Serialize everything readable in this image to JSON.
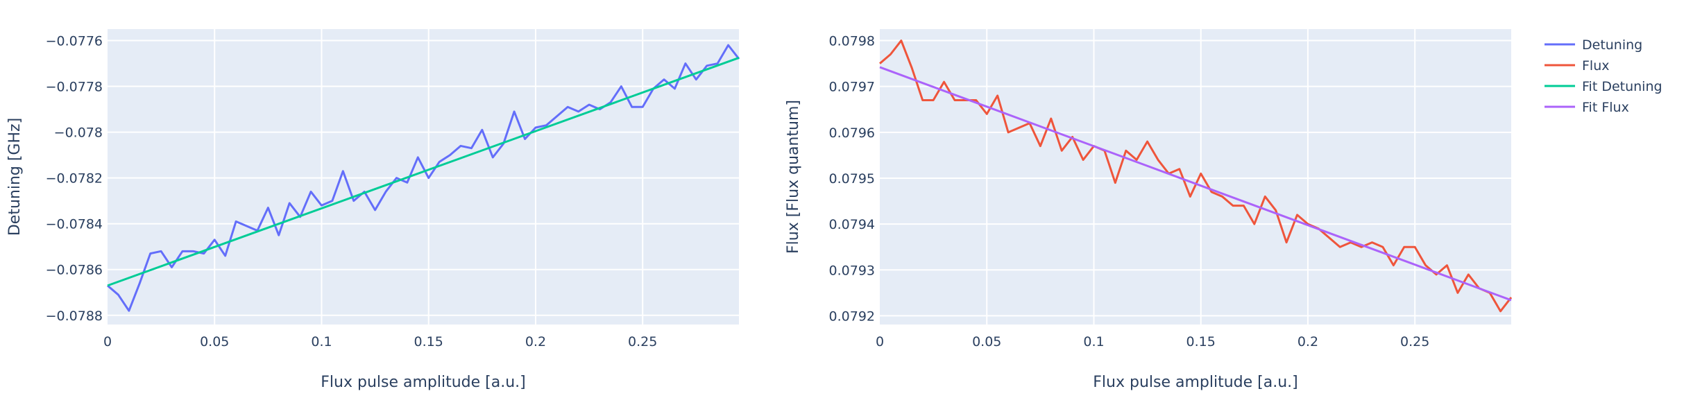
{
  "chart_data": [
    {
      "type": "line",
      "xlabel": "Flux pulse amplitude [a.u.]",
      "ylabel": "Detuning [GHz]",
      "xlim": [
        0,
        0.295
      ],
      "ylim": [
        -0.07884,
        -0.07755
      ],
      "xticks": [
        0,
        0.05,
        0.1,
        0.15,
        0.2,
        0.25
      ],
      "xtick_labels": [
        "0",
        "0.05",
        "0.1",
        "0.15",
        "0.2",
        "0.25"
      ],
      "yticks": [
        -0.0788,
        -0.0786,
        -0.0784,
        -0.0782,
        -0.078,
        -0.0778,
        -0.0776
      ],
      "ytick_labels": [
        "−0.0788",
        "−0.0786",
        "−0.0784",
        "−0.0782",
        "−0.078",
        "−0.0778",
        "−0.0776"
      ],
      "grid": true,
      "series": [
        {
          "name": "Detuning",
          "color": "#636efa",
          "x": [
            0,
            0.005,
            0.01,
            0.015,
            0.02,
            0.025,
            0.03,
            0.035,
            0.04,
            0.045,
            0.05,
            0.055,
            0.06,
            0.065,
            0.07,
            0.075,
            0.08,
            0.085,
            0.09,
            0.095,
            0.1,
            0.105,
            0.11,
            0.115,
            0.12,
            0.125,
            0.13,
            0.135,
            0.14,
            0.145,
            0.15,
            0.155,
            0.16,
            0.165,
            0.17,
            0.175,
            0.18,
            0.185,
            0.19,
            0.195,
            0.2,
            0.205,
            0.21,
            0.215,
            0.22,
            0.225,
            0.23,
            0.235,
            0.24,
            0.245,
            0.25,
            0.255,
            0.26,
            0.265,
            0.27,
            0.275,
            0.28,
            0.285,
            0.29,
            0.295
          ],
          "y": [
            -0.07867,
            -0.07871,
            -0.07878,
            -0.07866,
            -0.07853,
            -0.07852,
            -0.07859,
            -0.07852,
            -0.07852,
            -0.07853,
            -0.07847,
            -0.07854,
            -0.07839,
            -0.07841,
            -0.07843,
            -0.07833,
            -0.07845,
            -0.07831,
            -0.07837,
            -0.07826,
            -0.07832,
            -0.0783,
            -0.07817,
            -0.0783,
            -0.07826,
            -0.07834,
            -0.07826,
            -0.0782,
            -0.07822,
            -0.07811,
            -0.0782,
            -0.07813,
            -0.0781,
            -0.07806,
            -0.07807,
            -0.07799,
            -0.07811,
            -0.07805,
            -0.07791,
            -0.07803,
            -0.07798,
            -0.07797,
            -0.07793,
            -0.07789,
            -0.07791,
            -0.07788,
            -0.0779,
            -0.07787,
            -0.0778,
            -0.07789,
            -0.07789,
            -0.07781,
            -0.07777,
            -0.07781,
            -0.0777,
            -0.07777,
            -0.07771,
            -0.0777,
            -0.07762,
            -0.07768
          ]
        },
        {
          "name": "Fit Detuning",
          "color": "#00cc96",
          "x": [
            0,
            0.295
          ],
          "y": [
            -0.07867,
            -0.077675
          ]
        }
      ]
    },
    {
      "type": "line",
      "xlabel": "Flux pulse amplitude [a.u.]",
      "ylabel": "Flux [Flux quantum]",
      "xlim": [
        0,
        0.295
      ],
      "ylim": [
        0.079181,
        0.079825
      ],
      "xticks": [
        0,
        0.05,
        0.1,
        0.15,
        0.2,
        0.25
      ],
      "xtick_labels": [
        "0",
        "0.05",
        "0.1",
        "0.15",
        "0.2",
        "0.25"
      ],
      "yticks": [
        0.0792,
        0.0793,
        0.0794,
        0.0795,
        0.0796,
        0.0797,
        0.0798
      ],
      "ytick_labels": [
        "0.0792",
        "0.0793",
        "0.0794",
        "0.0795",
        "0.0796",
        "0.0797",
        "0.0798"
      ],
      "grid": true,
      "series": [
        {
          "name": "Flux",
          "color": "#ef553b",
          "x": [
            0,
            0.005,
            0.01,
            0.015,
            0.02,
            0.025,
            0.03,
            0.035,
            0.04,
            0.045,
            0.05,
            0.055,
            0.06,
            0.065,
            0.07,
            0.075,
            0.08,
            0.085,
            0.09,
            0.095,
            0.1,
            0.105,
            0.11,
            0.115,
            0.12,
            0.125,
            0.13,
            0.135,
            0.14,
            0.145,
            0.15,
            0.155,
            0.16,
            0.165,
            0.17,
            0.175,
            0.18,
            0.185,
            0.19,
            0.195,
            0.2,
            0.205,
            0.21,
            0.215,
            0.22,
            0.225,
            0.23,
            0.235,
            0.24,
            0.245,
            0.25,
            0.255,
            0.26,
            0.265,
            0.27,
            0.275,
            0.28,
            0.285,
            0.29,
            0.295
          ],
          "y": [
            0.07975,
            0.07977,
            0.0798,
            0.07974,
            0.07967,
            0.07967,
            0.07971,
            0.07967,
            0.07967,
            0.07967,
            0.07964,
            0.07968,
            0.0796,
            0.07961,
            0.07962,
            0.07957,
            0.07963,
            0.07956,
            0.07959,
            0.07954,
            0.07957,
            0.07956,
            0.07949,
            0.07956,
            0.07954,
            0.07958,
            0.07954,
            0.07951,
            0.07952,
            0.07946,
            0.07951,
            0.07947,
            0.07946,
            0.07944,
            0.07944,
            0.0794,
            0.07946,
            0.07943,
            0.07936,
            0.07942,
            0.0794,
            0.07939,
            0.07937,
            0.07935,
            0.07936,
            0.07935,
            0.07936,
            0.07935,
            0.07931,
            0.07935,
            0.07935,
            0.07931,
            0.07929,
            0.07931,
            0.07925,
            0.07929,
            0.07926,
            0.07925,
            0.07921,
            0.07924
          ]
        },
        {
          "name": "Fit Flux",
          "color": "#ab63fa",
          "x": [
            0,
            0.295
          ],
          "y": [
            0.079742,
            0.079234
          ]
        }
      ]
    }
  ],
  "legend": {
    "position": "top-right",
    "items": [
      {
        "label": "Detuning",
        "color": "#636efa"
      },
      {
        "label": "Flux",
        "color": "#ef553b"
      },
      {
        "label": "Fit Detuning",
        "color": "#00cc96"
      },
      {
        "label": "Fit Flux",
        "color": "#ab63fa"
      }
    ]
  },
  "colors": {
    "plot_background": "#e5ecf6",
    "grid": "#ffffff",
    "text": "#2a3f5f"
  }
}
